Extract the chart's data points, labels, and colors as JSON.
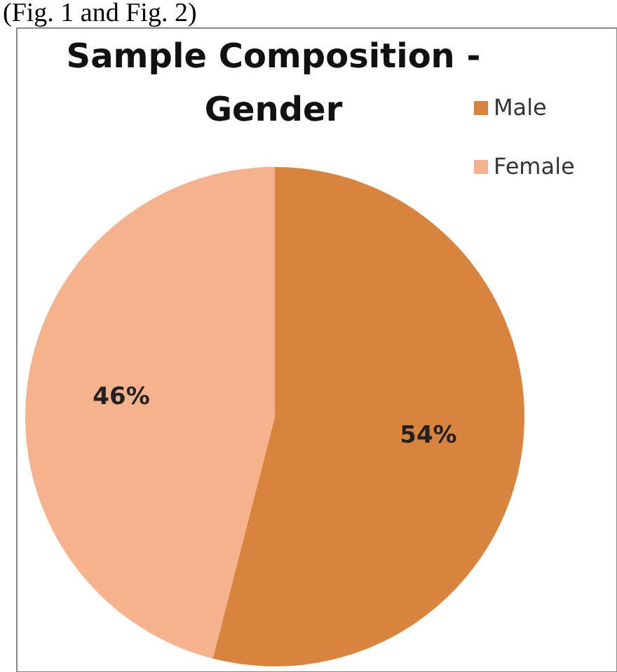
{
  "chart_data": {
    "type": "pie",
    "title": "Sample Composition - Gender",
    "annotations": [
      "(Fig. 1 and Fig. 2)"
    ],
    "categories": [
      "Male",
      "Female"
    ],
    "values": [
      54,
      46
    ],
    "value_labels": [
      "54%",
      "46%"
    ],
    "colors": [
      "#d9843c",
      "#f6b28c"
    ],
    "legend": "top right"
  }
}
